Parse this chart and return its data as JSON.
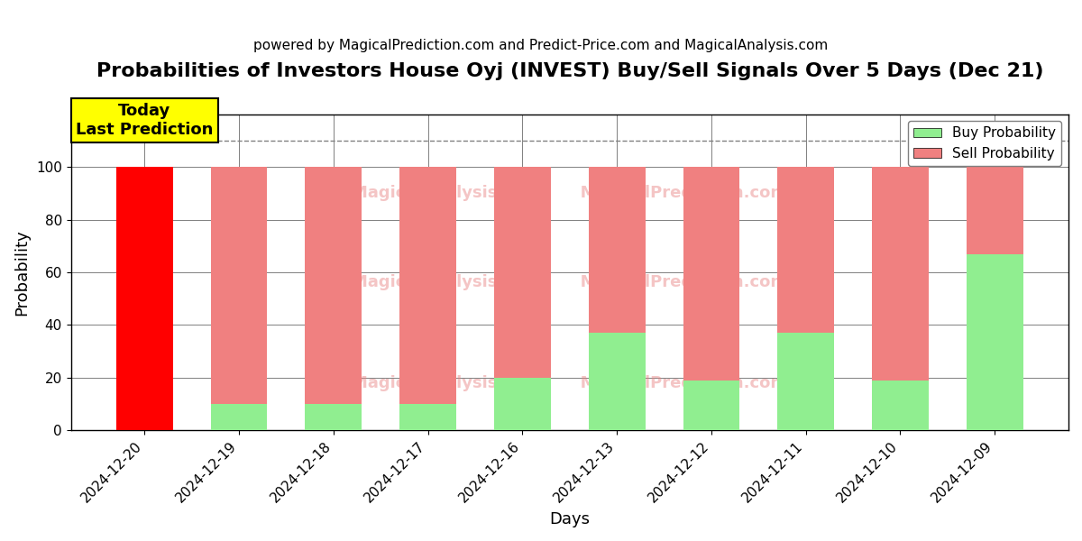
{
  "title": "Probabilities of Investors House Oyj (INVEST) Buy/Sell Signals Over 5 Days (Dec 21)",
  "subtitle": "powered by MagicalPrediction.com and Predict-Price.com and MagicalAnalysis.com",
  "xlabel": "Days",
  "ylabel": "Probability",
  "categories": [
    "2024-12-20",
    "2024-12-19",
    "2024-12-18",
    "2024-12-17",
    "2024-12-16",
    "2024-12-13",
    "2024-12-12",
    "2024-12-11",
    "2024-12-10",
    "2024-12-09"
  ],
  "buy_values": [
    0,
    10,
    10,
    10,
    20,
    37,
    19,
    37,
    19,
    67
  ],
  "sell_values": [
    100,
    90,
    90,
    90,
    80,
    63,
    81,
    63,
    81,
    33
  ],
  "buy_color": "#90EE90",
  "sell_color_first": "#FF0000",
  "sell_color_rest": "#F08080",
  "ylim_max": 120,
  "yticks": [
    0,
    20,
    40,
    60,
    80,
    100
  ],
  "dashed_line_y": 110,
  "watermark_color": "#E88080",
  "watermark_alpha": 0.45,
  "watermark_rows": [
    0.15,
    0.47,
    0.75
  ],
  "watermark_text": "MagicalAnalysis.com       MagicalPrediction.com",
  "today_label": "Today\nLast Prediction",
  "today_box_color": "yellow",
  "legend_buy_label": "Buy Probability",
  "legend_sell_label": "Sell Probability",
  "title_fontsize": 16,
  "subtitle_fontsize": 11,
  "axis_label_fontsize": 13,
  "tick_fontsize": 11,
  "bar_width": 0.6
}
